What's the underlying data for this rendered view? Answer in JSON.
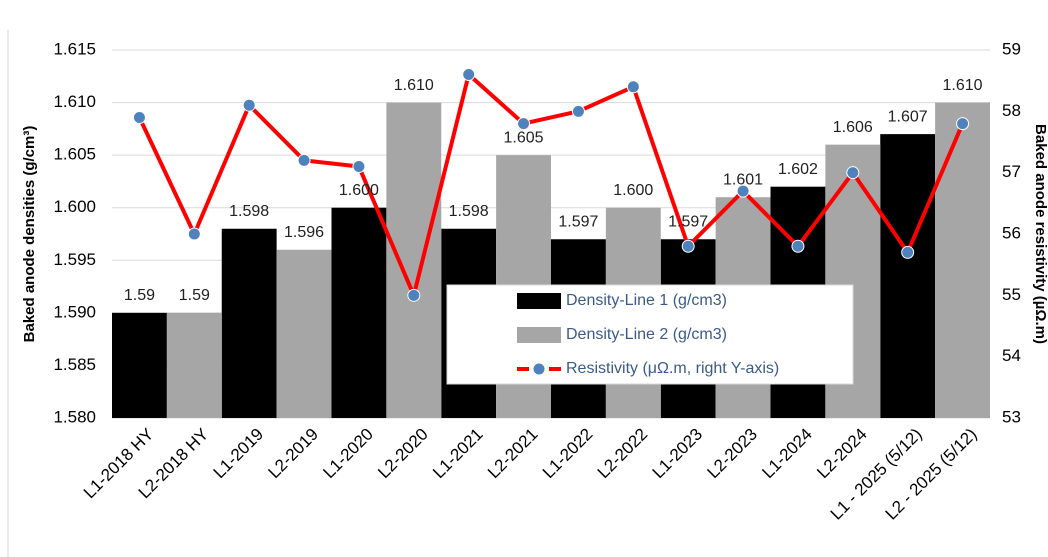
{
  "chart_data": {
    "type": "bar",
    "ylabel": "Baked anode densities (g/cm³)",
    "y2label": "Baked anode resistivity (µΩ.m)",
    "categories": [
      "L1-2018 HY",
      "L2-2018 HY",
      "L1-2019",
      "L2-2019",
      "L1-2020",
      "L2-2020",
      "L1-2021",
      "L2-2021",
      "L1-2022",
      "L2-2022",
      "L1-2023",
      "L2-2023",
      "L1-2024",
      "L2-2024",
      "L1 - 2025 (5/12)",
      "L2 - 2025 (5/12)"
    ],
    "series": [
      {
        "name": "Density-Line 1 (g/cm3)",
        "type": "bar",
        "color": "#000000",
        "values": [
          1.59,
          null,
          1.598,
          null,
          1.6,
          null,
          1.598,
          null,
          1.597,
          null,
          1.597,
          null,
          1.602,
          null,
          1.607,
          null
        ],
        "value_labels": [
          "1.59",
          null,
          "1.598",
          null,
          "1.600",
          null,
          "1.598",
          null,
          "1.597",
          null,
          "1.597",
          null,
          "1.602",
          null,
          "1.607",
          null
        ]
      },
      {
        "name": "Density-Line 2 (g/cm3)",
        "type": "bar",
        "color": "#a6a6a6",
        "values": [
          null,
          1.59,
          null,
          1.596,
          null,
          1.61,
          null,
          1.605,
          null,
          1.6,
          null,
          1.601,
          null,
          1.606,
          null,
          1.61
        ],
        "value_labels": [
          null,
          "1.59",
          null,
          "1.596",
          null,
          "1.610",
          null,
          "1.605",
          null,
          "1.600",
          null,
          "1.601",
          null,
          "1.606",
          null,
          "1.610"
        ]
      },
      {
        "name": "Resistivity (μΩ.m, right Y-axis)",
        "type": "line",
        "axis": "y2",
        "color": "#ff0000",
        "marker_color": "#4f81bd",
        "values": [
          57.9,
          56.0,
          58.1,
          57.2,
          57.1,
          55.0,
          58.6,
          57.8,
          58.0,
          58.4,
          55.8,
          56.7,
          55.8,
          57.0,
          55.7,
          57.8
        ]
      }
    ],
    "ylim": [
      1.58,
      1.615
    ],
    "yticks": [
      {
        "value": 1.58,
        "label": "1.580"
      },
      1.585,
      {
        "value": 1.59,
        "label": "1.590"
      },
      1.595,
      {
        "value": 1.6,
        "label": "1.600"
      },
      1.605,
      {
        "value": 1.61,
        "label": "1.610"
      },
      1.615
    ],
    "y2lim": [
      53,
      59
    ],
    "y2ticks": [
      53,
      54,
      55,
      56,
      57,
      58,
      59
    ],
    "grid": true
  }
}
